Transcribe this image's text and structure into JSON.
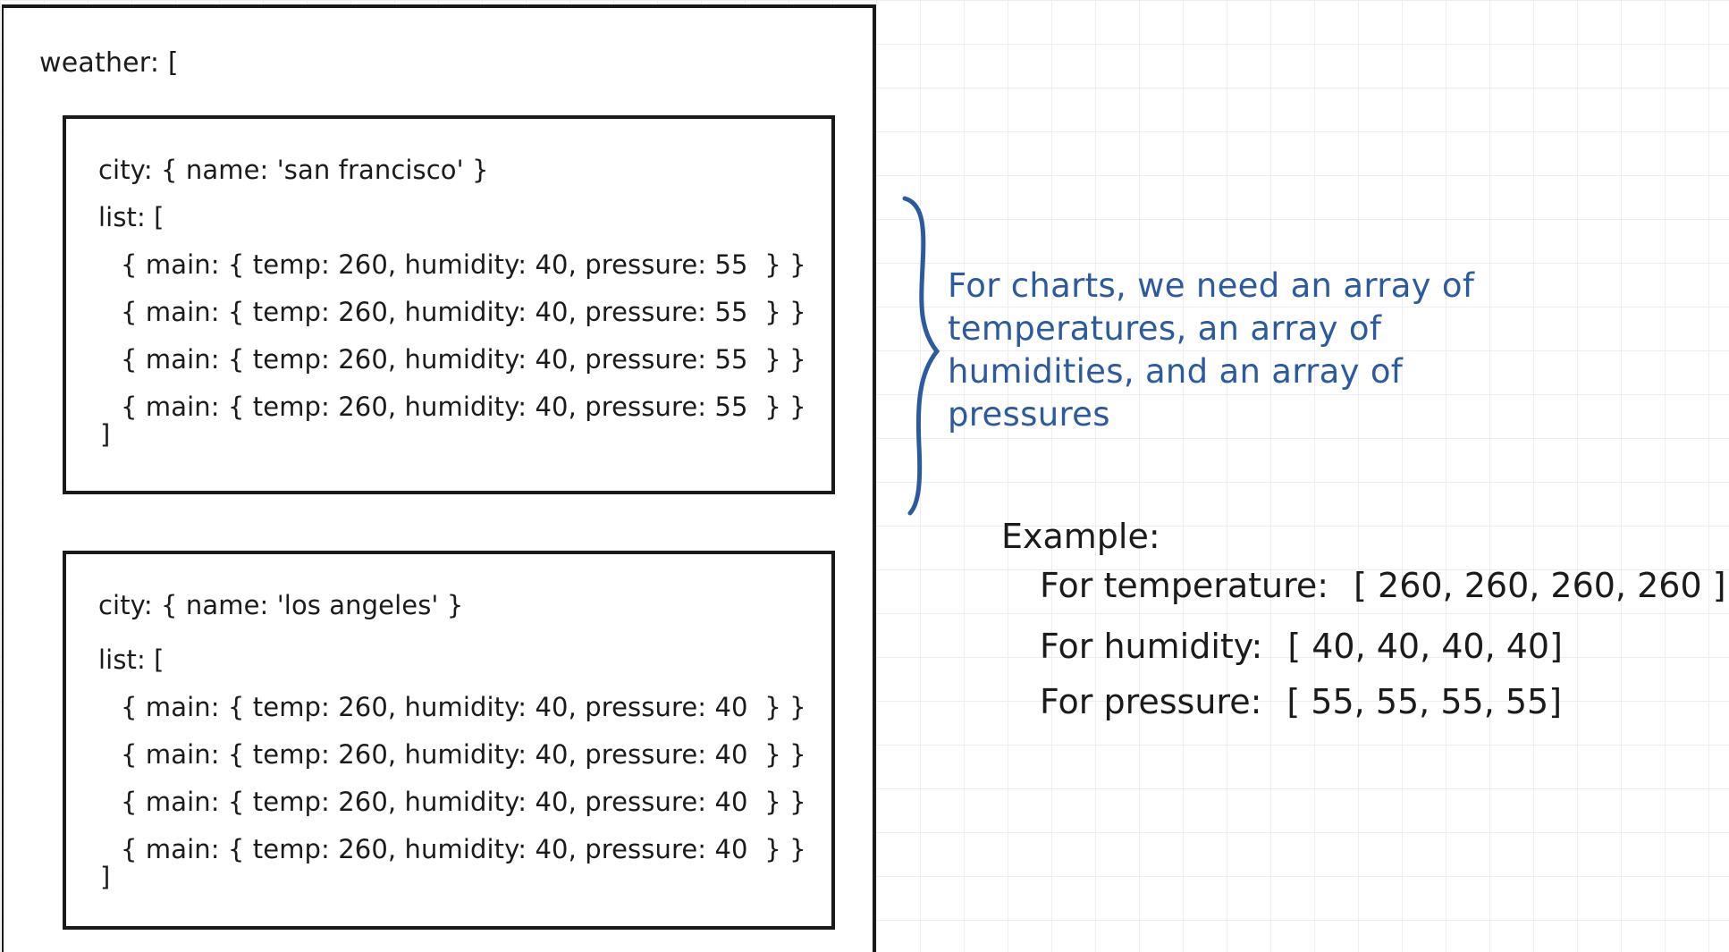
{
  "weather_label": "weather: [",
  "cities": [
    {
      "city_line": "city: { name: 'san francisco' }",
      "list_open": "list: [",
      "rows": [
        "{ main: { temp: 260, humidity: 40, pressure: 55  } }",
        "{ main: { temp: 260, humidity: 40, pressure: 55  } }",
        "{ main: { temp: 260, humidity: 40, pressure: 55  } }",
        "{ main: { temp: 260, humidity: 40, pressure: 55  } }"
      ],
      "list_close": "]"
    },
    {
      "city_line": "city: { name: 'los angeles' }",
      "list_open": "list: [",
      "rows": [
        "{ main: { temp: 260, humidity: 40, pressure: 40  } }",
        "{ main: { temp: 260, humidity: 40, pressure: 40  } }",
        "{ main: { temp: 260, humidity: 40, pressure: 40  } }",
        "{ main: { temp: 260, humidity: 40, pressure: 40  } }"
      ],
      "list_close": "]"
    }
  ],
  "note": {
    "lines": [
      "For charts, we need an array of",
      "temperatures, an array of",
      "humidities, and an array of",
      "pressures"
    ],
    "color": "#2b5aa0"
  },
  "example": {
    "title": "Example:",
    "temperature_label": "For temperature:",
    "temperature_value": "[ 260, 260, 260, 260 ]",
    "humidity_label": "For humidity:",
    "humidity_value": "[ 40, 40, 40, 40]",
    "pressure_label": "For pressure:",
    "pressure_value": "[ 55, 55, 55, 55]"
  }
}
